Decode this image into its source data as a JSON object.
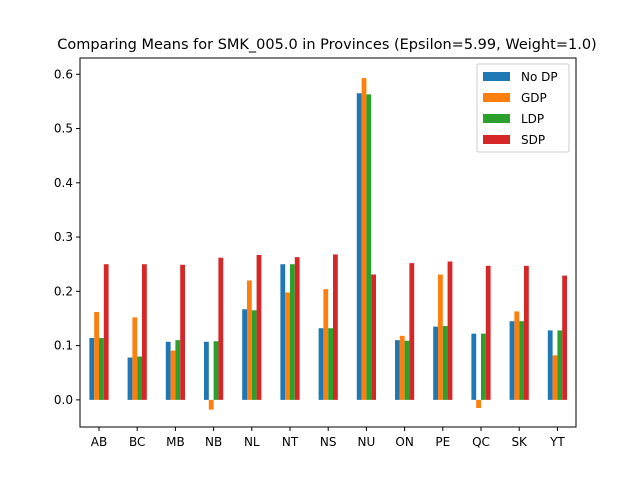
{
  "chart_data": {
    "type": "bar",
    "title": "Comparing Means for SMK_005.0 in Provinces (Epsilon=5.99, Weight=1.0)",
    "xlabel": "",
    "ylabel": "",
    "categories": [
      "AB",
      "BC",
      "MB",
      "NB",
      "NL",
      "NT",
      "NS",
      "NU",
      "ON",
      "PE",
      "QC",
      "SK",
      "YT"
    ],
    "ylim": [
      -0.05,
      0.63
    ],
    "yticks": [
      0.0,
      0.1,
      0.2,
      0.3,
      0.4,
      0.5,
      0.6
    ],
    "ytick_labels": [
      "0.0",
      "0.1",
      "0.2",
      "0.3",
      "0.4",
      "0.5",
      "0.6"
    ],
    "grid": false,
    "legend_position": "top-right",
    "series": [
      {
        "name": "No DP",
        "color": "#1f77b4",
        "values": [
          0.114,
          0.078,
          0.107,
          0.107,
          0.167,
          0.25,
          0.132,
          0.565,
          0.11,
          0.135,
          0.122,
          0.145,
          0.128
        ]
      },
      {
        "name": "GDP",
        "color": "#ff7f0e",
        "values": [
          0.162,
          0.152,
          0.091,
          -0.018,
          0.22,
          0.198,
          0.204,
          0.593,
          0.118,
          0.231,
          -0.015,
          0.163,
          0.082
        ]
      },
      {
        "name": "LDP",
        "color": "#2ca02c",
        "values": [
          0.114,
          0.08,
          0.11,
          0.108,
          0.165,
          0.25,
          0.132,
          0.563,
          0.109,
          0.136,
          0.122,
          0.145,
          0.128
        ]
      },
      {
        "name": "SDP",
        "color": "#d62728",
        "values": [
          0.25,
          0.25,
          0.249,
          0.262,
          0.267,
          0.263,
          0.268,
          0.231,
          0.252,
          0.255,
          0.247,
          0.247,
          0.229
        ]
      }
    ]
  }
}
